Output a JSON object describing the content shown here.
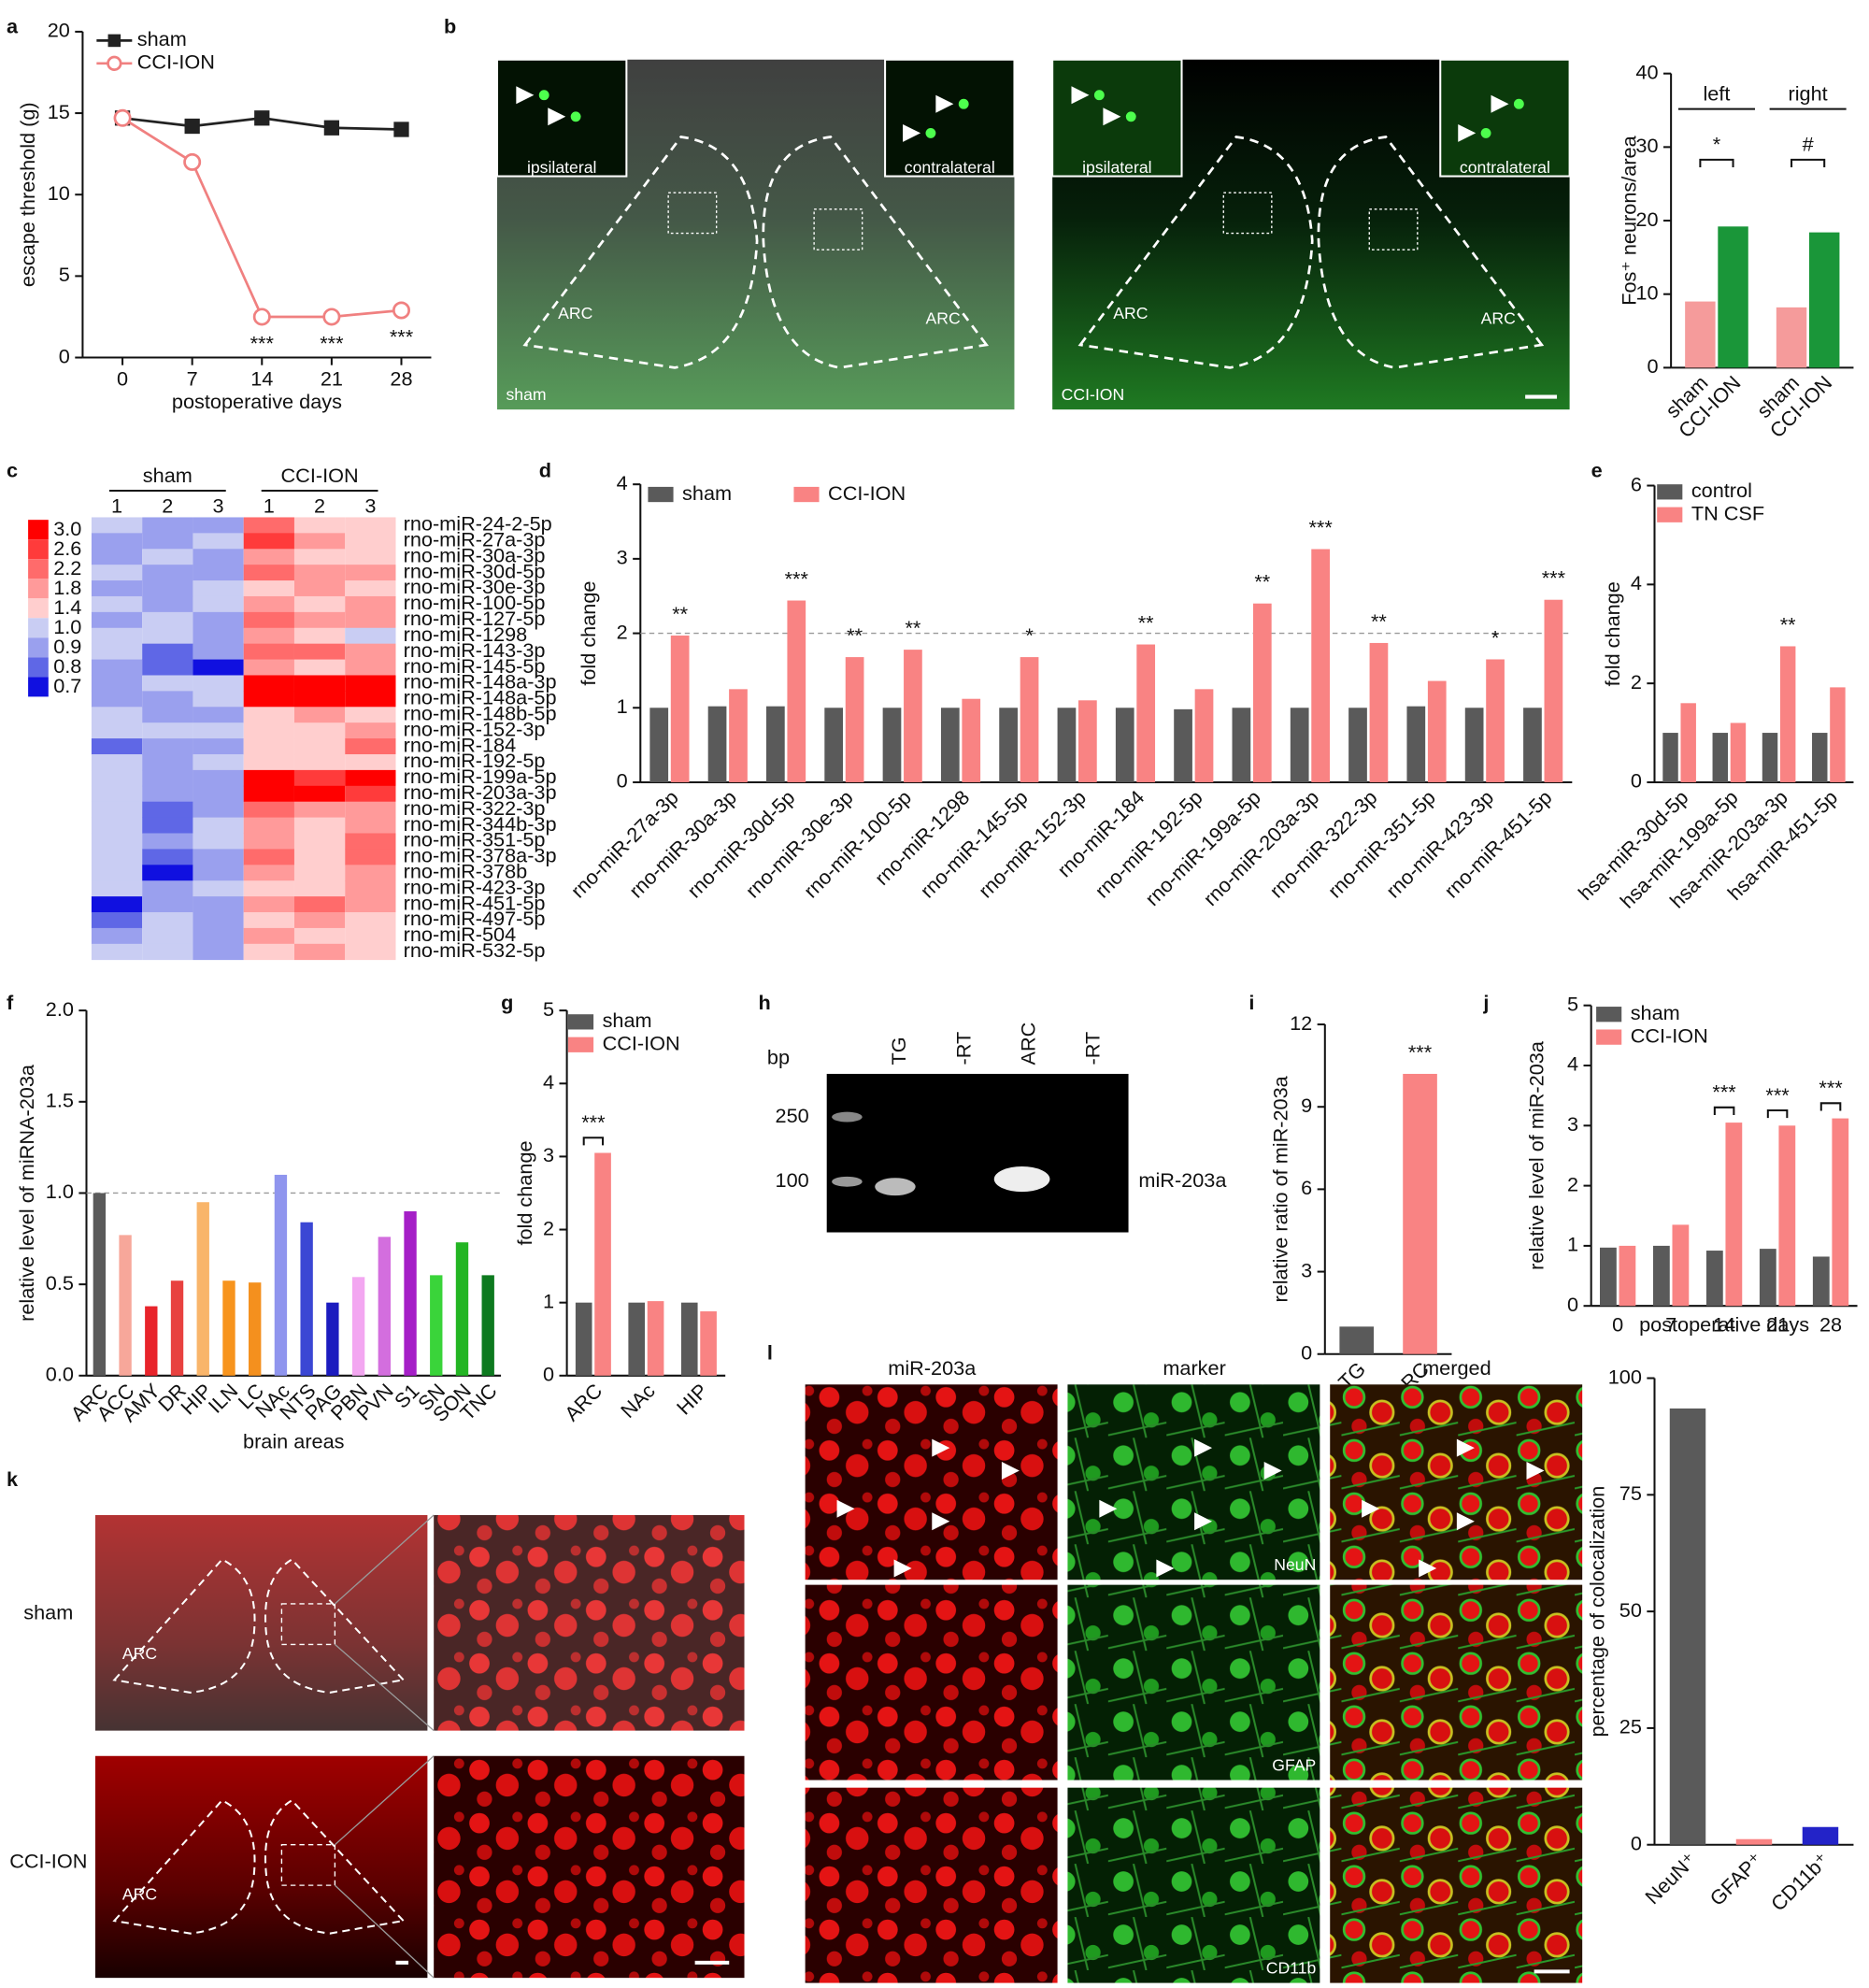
{
  "panel_labels": [
    "a",
    "b",
    "c",
    "d",
    "e",
    "f",
    "g",
    "h",
    "i",
    "j",
    "k",
    "l"
  ],
  "chart_data": [
    {
      "type": "line",
      "x": [
        0,
        7,
        14,
        21,
        28
      ],
      "xlim": [
        -4,
        31
      ],
      "xticks": [
        0,
        7,
        14,
        21,
        28
      ],
      "ylim": [
        0,
        20
      ],
      "yticks": [
        0,
        5,
        10,
        15,
        20
      ],
      "xlabel": "postoperative days",
      "ylabel": "escape threshold (g)",
      "legend": "upper left",
      "series": [
        {
          "name": "sham",
          "color": "#222222",
          "marker": "square",
          "values": [
            14.7,
            14.2,
            14.7,
            14.1,
            14.0
          ]
        },
        {
          "name": "CCI-ION",
          "color": "#f08080",
          "marker": "open-circle",
          "values": [
            14.7,
            12.0,
            2.5,
            2.5,
            2.9
          ]
        }
      ],
      "annotations": [
        null,
        null,
        "***",
        "***",
        "***"
      ]
    },
    {
      "type": "bar",
      "categories": [
        "left",
        "right"
      ],
      "ylim": [
        0,
        40
      ],
      "yticks": [
        0,
        10,
        20,
        30,
        40
      ],
      "ylabel": "Fos⁺ neurons/area",
      "series": [
        {
          "name": "sham",
          "color": "#f59b9b",
          "values": [
            9.0,
            8.2
          ]
        },
        {
          "name": "CCI-ION",
          "color": "#1a9639",
          "values": [
            19.2,
            18.4
          ]
        }
      ],
      "annotations": [
        "*",
        "#"
      ]
    },
    {
      "type": "heatmap",
      "column_groups": [
        "sham",
        "CCI-ION"
      ],
      "columns": [
        "1",
        "2",
        "3",
        "1",
        "2",
        "3"
      ],
      "rows": [
        "rno-miR-24-2-5p",
        "rno-miR-27a-3p",
        "rno-miR-30a-3p",
        "rno-miR-30d-5p",
        "rno-miR-30e-3p",
        "rno-miR-100-5p",
        "rno-miR-127-5p",
        "rno-miR-1298",
        "rno-miR-143-3p",
        "rno-miR-145-5p",
        "rno-miR-148a-3p",
        "rno-miR-148a-5p",
        "rno-miR-148b-5p",
        "rno-miR-152-3p",
        "rno-miR-184",
        "rno-miR-192-5p",
        "rno-miR-199a-5p",
        "rno-miR-203a-3p",
        "rno-miR-322-3p",
        "rno-miR-344b-3p",
        "rno-miR-351-5p",
        "rno-miR-378a-3p",
        "rno-miR-378b",
        "rno-miR-423-3p",
        "rno-miR-451-5p",
        "rno-miR-497-5p",
        "rno-miR-504",
        "rno-miR-532-5p"
      ],
      "values": [
        [
          1.0,
          0.9,
          0.9,
          2.2,
          1.4,
          1.4
        ],
        [
          0.9,
          0.9,
          1.0,
          2.6,
          1.8,
          1.4
        ],
        [
          0.9,
          1.0,
          0.9,
          1.8,
          1.4,
          1.4
        ],
        [
          1.0,
          0.9,
          0.9,
          2.2,
          1.8,
          1.8
        ],
        [
          0.9,
          0.9,
          1.0,
          1.4,
          1.8,
          1.4
        ],
        [
          1.0,
          0.9,
          1.0,
          1.8,
          1.4,
          1.8
        ],
        [
          0.9,
          1.0,
          0.9,
          2.2,
          1.8,
          1.8
        ],
        [
          1.0,
          1.0,
          0.9,
          1.8,
          1.4,
          1.0
        ],
        [
          1.0,
          0.8,
          0.9,
          2.2,
          2.2,
          1.8
        ],
        [
          0.9,
          0.8,
          0.7,
          1.8,
          1.4,
          1.8
        ],
        [
          0.9,
          1.0,
          1.0,
          3.0,
          3.0,
          3.0
        ],
        [
          0.9,
          0.9,
          1.0,
          3.0,
          3.0,
          3.0
        ],
        [
          1.0,
          0.9,
          0.9,
          1.4,
          1.8,
          1.4
        ],
        [
          1.0,
          1.0,
          1.0,
          1.4,
          1.4,
          1.8
        ],
        [
          0.8,
          0.9,
          0.9,
          1.4,
          1.4,
          2.2
        ],
        [
          1.0,
          0.9,
          1.0,
          1.4,
          1.4,
          1.4
        ],
        [
          1.0,
          0.9,
          0.9,
          3.0,
          2.6,
          3.0
        ],
        [
          1.0,
          0.9,
          0.9,
          3.0,
          3.0,
          2.6
        ],
        [
          1.0,
          0.8,
          0.9,
          2.2,
          1.8,
          1.8
        ],
        [
          1.0,
          0.8,
          1.0,
          1.8,
          1.4,
          1.8
        ],
        [
          1.0,
          0.9,
          1.0,
          1.8,
          1.4,
          2.2
        ],
        [
          1.0,
          0.8,
          0.9,
          2.2,
          1.4,
          2.2
        ],
        [
          1.0,
          0.7,
          0.9,
          1.8,
          1.4,
          1.8
        ],
        [
          1.0,
          0.9,
          1.0,
          1.4,
          1.4,
          1.8
        ],
        [
          0.7,
          0.9,
          0.9,
          1.8,
          2.2,
          1.8
        ],
        [
          0.8,
          1.0,
          0.9,
          1.4,
          1.8,
          1.4
        ],
        [
          0.9,
          1.0,
          0.9,
          1.8,
          1.4,
          1.4
        ],
        [
          1.0,
          1.0,
          0.9,
          1.4,
          1.8,
          1.4
        ]
      ],
      "colorbar_ticks": [
        {
          "value": 3,
          "label": "3.0"
        },
        2.6,
        2.2,
        1.8,
        1.4,
        {
          "value": 1,
          "label": "1.0"
        },
        0.9,
        0.8,
        0.7
      ],
      "colorbar_colors": [
        "#ff0000",
        "#ff3b3b",
        "#ff6b6b",
        "#ff9a9a",
        "#ffcece",
        "#c9cdf3",
        "#9aa0ee",
        "#5f67e6",
        "#1010e0"
      ]
    },
    {
      "type": "bar",
      "categories": [
        "rno-miR-27a-3p",
        "rno-miR-30a-3p",
        "rno-miR-30d-5p",
        "rno-miR-30e-3p",
        "rno-miR-100-5p",
        "rno-miR-1298",
        "rno-miR-145-5p",
        "rno-miR-152-3p",
        "rno-miR-184",
        "rno-miR-192-5p",
        "rno-miR-199a-5p",
        "rno-miR-203a-3p",
        "rno-miR-322-3p",
        "rno-miR-351-5p",
        "rno-miR-423-3p",
        "rno-miR-451-5p"
      ],
      "ylim": [
        0,
        4
      ],
      "yticks": [
        0,
        1,
        2,
        3,
        4
      ],
      "ylabel": "fold change",
      "reference_line": 2,
      "legend": "top",
      "series": [
        {
          "name": "sham",
          "color": "#5a5a5a",
          "values": [
            1.0,
            1.02,
            1.02,
            1.0,
            1.0,
            1.0,
            1.0,
            1.0,
            1.0,
            0.98,
            1.0,
            1.0,
            1.0,
            1.02,
            1.0,
            1.0
          ]
        },
        {
          "name": "CCI-ION",
          "color": "#f98383",
          "values": [
            1.97,
            1.25,
            2.44,
            1.68,
            1.78,
            1.12,
            1.68,
            1.1,
            1.85,
            1.25,
            2.4,
            3.13,
            1.87,
            1.36,
            1.65,
            2.45
          ]
        }
      ],
      "annotations": [
        "**",
        null,
        "***",
        "**",
        "**",
        null,
        "*",
        null,
        "**",
        null,
        "**",
        "***",
        "**",
        null,
        "*",
        "***"
      ]
    },
    {
      "type": "bar",
      "categories": [
        "hsa-miR-30d-5p",
        "hsa-miR-199a-5p",
        "hsa-miR-203a-3p",
        "hsa-miR-451-5p"
      ],
      "ylim": [
        0,
        6
      ],
      "yticks": [
        0,
        2,
        4,
        6
      ],
      "ylabel": "fold change",
      "legend": "upper left",
      "series": [
        {
          "name": "control",
          "color": "#5a5a5a",
          "values": [
            1.0,
            1.0,
            1.0,
            1.0
          ]
        },
        {
          "name": "TN CSF",
          "color": "#f98383",
          "values": [
            1.6,
            1.2,
            2.75,
            1.92
          ]
        }
      ],
      "annotations": [
        null,
        null,
        "**",
        null
      ]
    },
    {
      "type": "bar",
      "categories": [
        "ARC",
        "ACC",
        "AMY",
        "DR",
        "HIP",
        "ILN",
        "LC",
        "NAc",
        "NTS",
        "PAG",
        "PBN",
        "PVN",
        "S1",
        "SN",
        "SON",
        "TNC"
      ],
      "values": [
        1.0,
        0.77,
        0.38,
        0.52,
        0.95,
        0.52,
        0.51,
        1.1,
        0.84,
        0.4,
        0.54,
        0.76,
        0.9,
        0.55,
        0.73,
        0.55
      ],
      "colors": [
        "#5a5a5a",
        "#f7a79a",
        "#e8242b",
        "#e8413f",
        "#f9b56a",
        "#f7941d",
        "#f4901e",
        "#8f95ee",
        "#3b47d4",
        "#1b1bbf",
        "#f3a7f1",
        "#d36ede",
        "#a51fc7",
        "#3ad43a",
        "#23b523",
        "#0d7a1f"
      ],
      "ylim": [
        0,
        2
      ],
      "yticks": [
        {
          "value": 0,
          "label": "0.0"
        },
        0.5,
        {
          "value": 1,
          "label": "1.0"
        },
        1.5,
        {
          "value": 2,
          "label": "2.0"
        }
      ],
      "ylabel": "relative level of miRNA-203a",
      "xlabel": "brain areas",
      "reference_line": 1
    },
    {
      "type": "bar",
      "categories": [
        "ARC",
        "NAc",
        "HIP"
      ],
      "ylim": [
        0,
        5
      ],
      "yticks": [
        0,
        1,
        2,
        3,
        4,
        5
      ],
      "ylabel": "fold change",
      "legend": "upper left",
      "series": [
        {
          "name": "sham",
          "color": "#5a5a5a",
          "values": [
            1.0,
            1.0,
            1.0
          ]
        },
        {
          "name": "CCI-ION",
          "color": "#f98383",
          "values": [
            3.05,
            1.02,
            0.88
          ]
        }
      ],
      "annotations": [
        "***",
        null,
        null
      ]
    },
    {
      "type": "bar",
      "categories": [
        "TG",
        "ARC"
      ],
      "values": [
        1.0,
        10.2
      ],
      "colors": [
        "#5a5a5a",
        "#f98383"
      ],
      "ylim": [
        0,
        12
      ],
      "yticks": [
        0,
        3,
        6,
        9,
        12
      ],
      "ylabel": "relative ratio of miR-203a",
      "annotations": [
        null,
        "***"
      ]
    },
    {
      "type": "bar",
      "categories": [
        "0",
        "7",
        "14",
        "21",
        "28"
      ],
      "ylim": [
        0,
        5
      ],
      "yticks": [
        0,
        1,
        2,
        3,
        4,
        5
      ],
      "ylabel": "relative level of miR-203a",
      "xlabel": "postoperative days",
      "legend": "upper left",
      "series": [
        {
          "name": "sham",
          "color": "#5a5a5a",
          "values": [
            0.97,
            1.0,
            0.92,
            0.95,
            0.82
          ]
        },
        {
          "name": "CCI-ION",
          "color": "#f98383",
          "values": [
            1.0,
            1.35,
            3.05,
            3.0,
            3.12
          ]
        }
      ],
      "annotations": [
        null,
        null,
        "***",
        "***",
        "***"
      ]
    },
    {
      "type": "bar",
      "categories": [
        "NeuN⁺",
        "GFAP⁺",
        "CD11b⁺"
      ],
      "values": [
        93.5,
        1.2,
        3.8
      ],
      "colors": [
        "#5a5a5a",
        "#f98383",
        "#2323c8"
      ],
      "ylim": [
        0,
        100
      ],
      "yticks": [
        0,
        25,
        50,
        75,
        100
      ],
      "ylabel": "percentage of colocalization"
    }
  ],
  "images": {
    "b_left": {
      "inset_left": "ipsilateral",
      "inset_right": "contralateral",
      "region": "ARC",
      "group": "sham"
    },
    "b_right": {
      "inset_left": "ipsilateral",
      "inset_right": "contralateral",
      "region": "ARC",
      "group": "CCI-ION"
    },
    "h": {
      "unit": "bp",
      "lanes": [
        "TG",
        "-RT",
        "ARC",
        "-RT"
      ],
      "markers": [
        "250",
        "100"
      ],
      "band": "miR-203a"
    },
    "k": {
      "rows": [
        "sham",
        "CCI-ION"
      ],
      "region": "ARC"
    },
    "l": {
      "columns": [
        "miR-203a",
        "marker",
        "merged"
      ],
      "markers": [
        "NeuN",
        "GFAP",
        "CD11b"
      ]
    }
  }
}
